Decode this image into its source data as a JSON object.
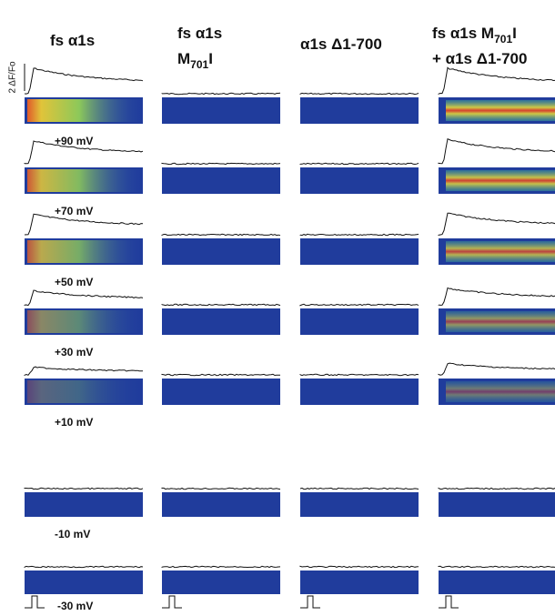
{
  "columns": [
    {
      "lines": [
        {
          "prefix": "fs α1s"
        }
      ]
    },
    {
      "lines": [
        {
          "prefix": "fs α1s"
        },
        {
          "prefix": "M",
          "sub": "701",
          "suffix": "I"
        }
      ]
    },
    {
      "lines": [
        {
          "prefix": "α1s Δ1-700"
        }
      ]
    },
    {
      "lines": [
        {
          "prefix": "fs α1s M",
          "sub": "701",
          "suffix": "I"
        },
        {
          "prefix": "+ α1s Δ1-700"
        }
      ]
    }
  ],
  "rows": [
    {
      "label": "+90 mV"
    },
    {
      "label": "+70 mV"
    },
    {
      "label": "+50 mV"
    },
    {
      "label": "+30 mV"
    },
    {
      "label": "+10 mV"
    },
    {
      "label": "-10 mV"
    },
    {
      "label": "-30 mV"
    }
  ],
  "scale_label": "2 ΔF/Fo"
}
